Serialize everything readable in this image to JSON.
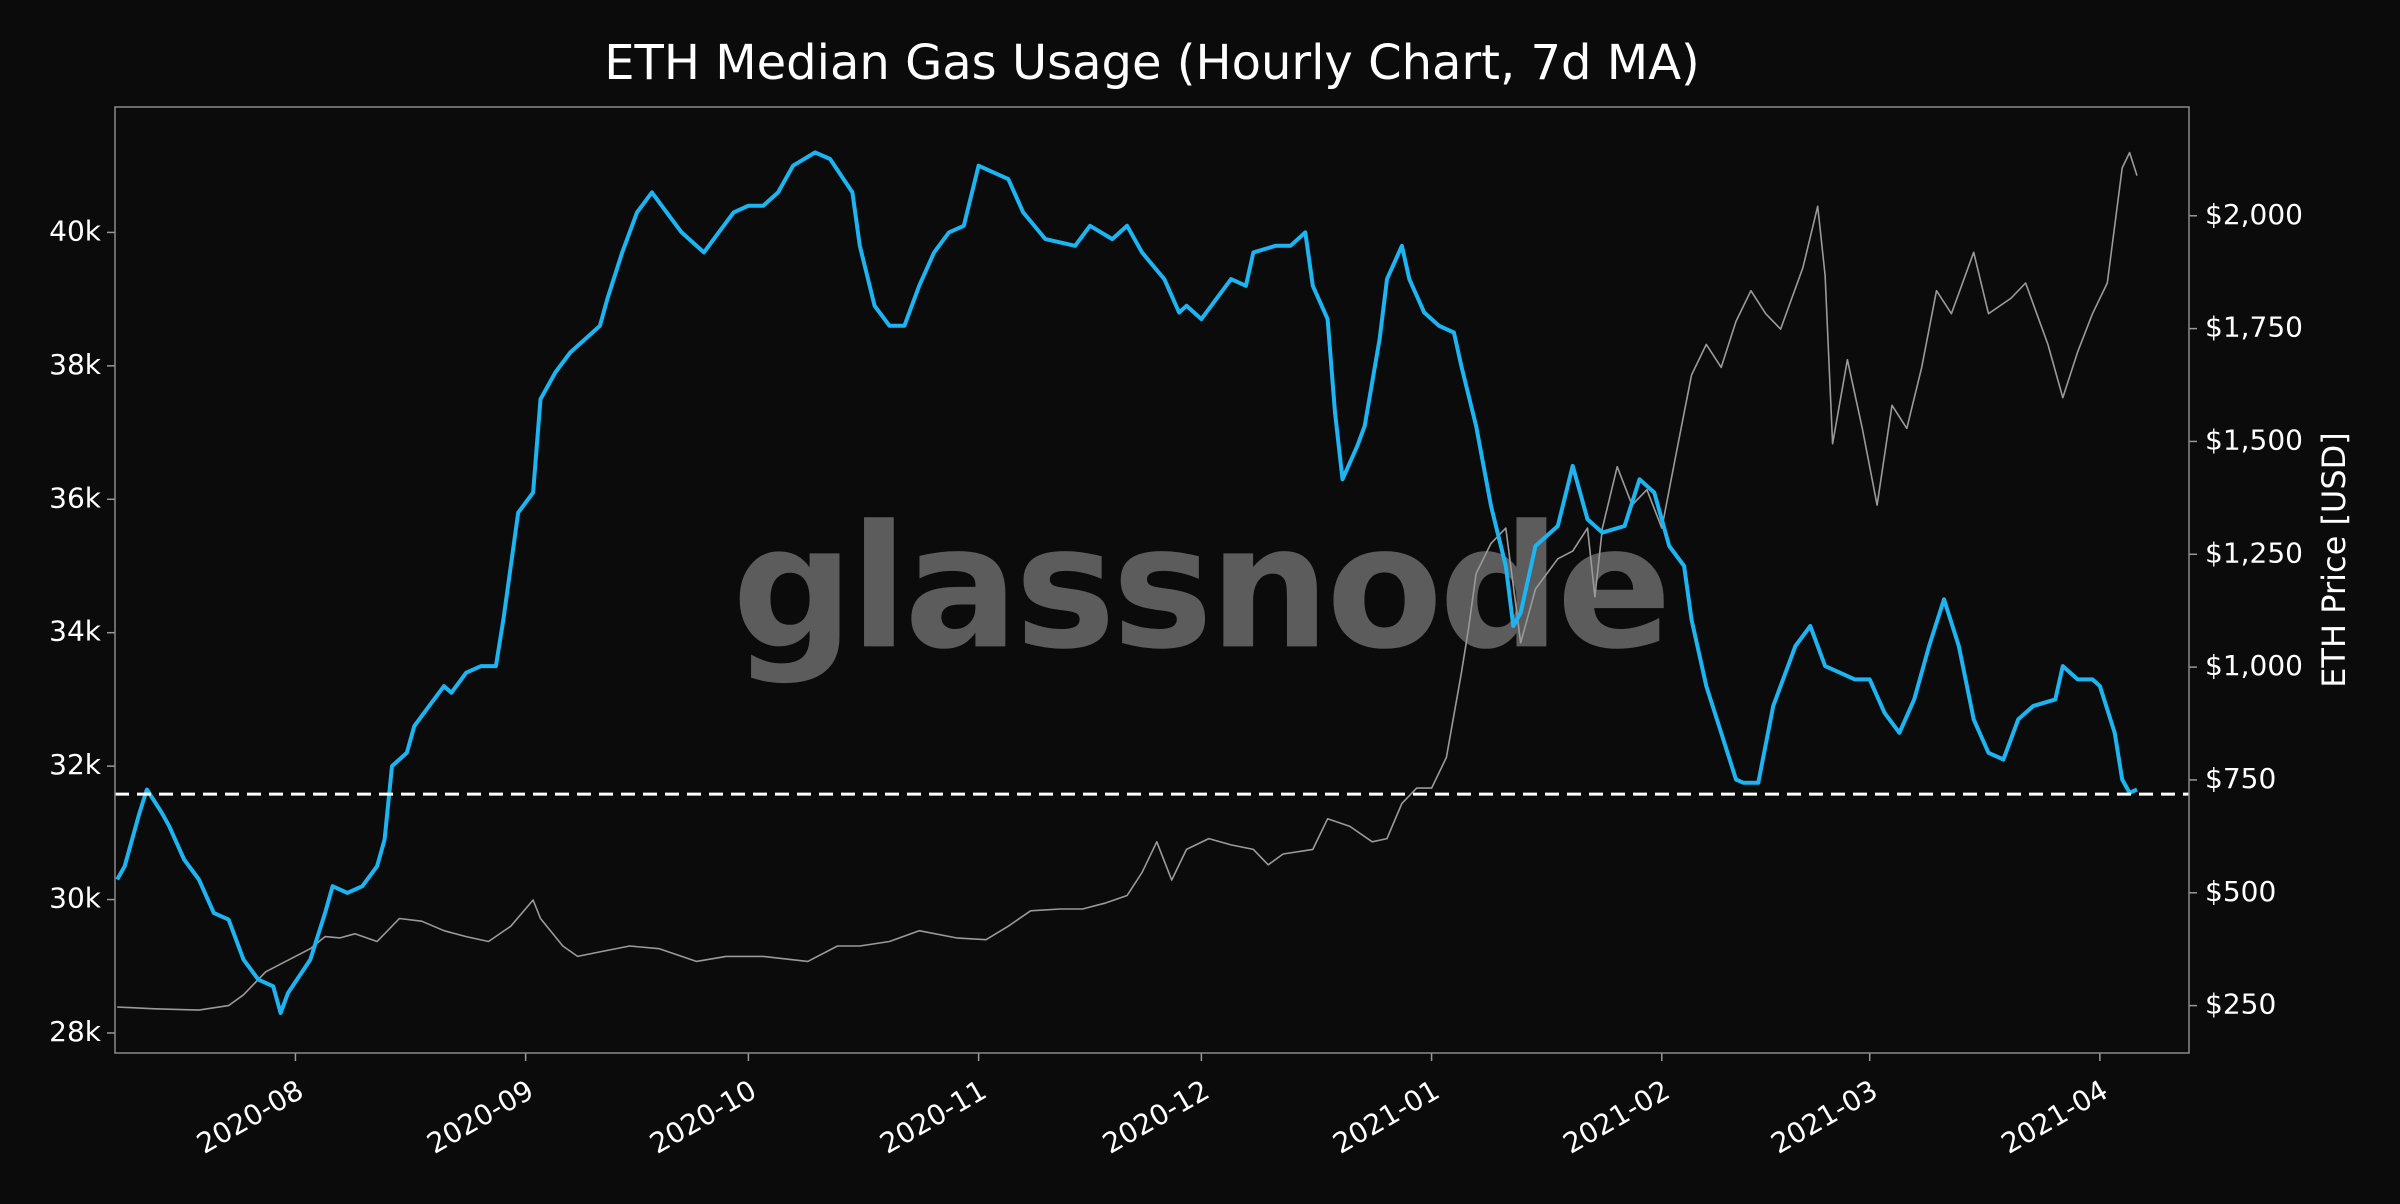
{
  "chart_data": {
    "type": "line",
    "title": "ETH Median Gas Usage (Hourly Chart, 7d MA)",
    "watermark": "glassnode",
    "y2label": "ETH Price [USD]",
    "xlim": [
      6.7,
      286
    ],
    "xticks": [
      {
        "value": 31,
        "label": "2020-08"
      },
      {
        "value": 62,
        "label": "2020-09"
      },
      {
        "value": 92,
        "label": "2020-10"
      },
      {
        "value": 123,
        "label": "2020-11"
      },
      {
        "value": 153,
        "label": "2020-12"
      },
      {
        "value": 184,
        "label": "2021-01"
      },
      {
        "value": 215,
        "label": "2021-02"
      },
      {
        "value": 243,
        "label": "2021-03"
      },
      {
        "value": 274,
        "label": "2021-04"
      }
    ],
    "ylim": [
      27700,
      41880
    ],
    "yticks": [
      {
        "value": 28000,
        "label": "28k"
      },
      {
        "value": 30000,
        "label": "30k"
      },
      {
        "value": 32000,
        "label": "32k"
      },
      {
        "value": 34000,
        "label": "34k"
      },
      {
        "value": 36000,
        "label": "36k"
      },
      {
        "value": 38000,
        "label": "38k"
      },
      {
        "value": 40000,
        "label": "40k"
      }
    ],
    "y2lim": [
      145,
      2241
    ],
    "y2ticks": [
      {
        "value": 250,
        "label": "$250"
      },
      {
        "value": 500,
        "label": "$500"
      },
      {
        "value": 750,
        "label": "$750"
      },
      {
        "value": 1000,
        "label": "$1,000"
      },
      {
        "value": 1250,
        "label": "$1,250"
      },
      {
        "value": 1500,
        "label": "$1,500"
      },
      {
        "value": 1750,
        "label": "$1,750"
      },
      {
        "value": 2000,
        "label": "$2,000"
      }
    ],
    "hline": {
      "value": 31580,
      "color": "#ffffff",
      "dashed": true
    },
    "series": [
      {
        "color": "#9a9a9a",
        "axis": "y2",
        "x": [
          7,
          12,
          18,
          22,
          24,
          27,
          29,
          33,
          35,
          37,
          39,
          42,
          45,
          48,
          51,
          54,
          57,
          60,
          63,
          64,
          67,
          69,
          72,
          76,
          80,
          85,
          89,
          94,
          100,
          104,
          107,
          111,
          115,
          120,
          124,
          127,
          130,
          134,
          137,
          140,
          143,
          145,
          147,
          149,
          151,
          154,
          157,
          160,
          162,
          164,
          168,
          170,
          173,
          176,
          178,
          180,
          182,
          184,
          186,
          188,
          189,
          190,
          192,
          194,
          196,
          198,
          201,
          203,
          205,
          206,
          207,
          209,
          211,
          213,
          215,
          217,
          219,
          221,
          223,
          225,
          227,
          229,
          231,
          234,
          236,
          237,
          238,
          240,
          242,
          244,
          246,
          248,
          250,
          252,
          254,
          257,
          259,
          262,
          264,
          267,
          269,
          271,
          273,
          275,
          277,
          278,
          279
        ],
        "values": [
          247,
          243,
          240,
          250,
          274,
          325,
          342,
          376,
          403,
          400,
          409,
          392,
          443,
          437,
          416,
          403,
          392,
          426,
          484,
          443,
          382,
          359,
          369,
          382,
          376,
          348,
          359,
          359,
          348,
          382,
          382,
          392,
          416,
          400,
          396,
          426,
          460,
          464,
          464,
          477,
          494,
          545,
          613,
          528,
          596,
          620,
          606,
          596,
          562,
          586,
          596,
          664,
          647,
          613,
          620,
          698,
          732,
          732,
          800,
          986,
          1088,
          1207,
          1274,
          1308,
          1054,
          1173,
          1240,
          1257,
          1308,
          1156,
          1308,
          1444,
          1359,
          1393,
          1308,
          1478,
          1647,
          1715,
          1664,
          1766,
          1834,
          1783,
          1749,
          1885,
          2021,
          1868,
          1495,
          1681,
          1529,
          1359,
          1580,
          1529,
          1664,
          1834,
          1783,
          1919,
          1783,
          1817,
          1851,
          1715,
          1597,
          1698,
          1783,
          1851,
          2106,
          2140,
          2089
        ]
      },
      {
        "color": "#1db4f2",
        "x": [
          7,
          8,
          10,
          11,
          13,
          14,
          16,
          18,
          20,
          22,
          24,
          26,
          28,
          29,
          30,
          33,
          35,
          36,
          38,
          40,
          42,
          43,
          44,
          46,
          47,
          49,
          51,
          52,
          54,
          56,
          58,
          59,
          61,
          63,
          64,
          66,
          68,
          70,
          72,
          73,
          75,
          77,
          79,
          81,
          83,
          86,
          88,
          90,
          92,
          94,
          96,
          98,
          101,
          103,
          106,
          107,
          109,
          111,
          113,
          115,
          117,
          119,
          121,
          123,
          125,
          127,
          129,
          132,
          136,
          138,
          141,
          143,
          145,
          148,
          150,
          151,
          153,
          155,
          157,
          159,
          160,
          163,
          165,
          167,
          168,
          170,
          171,
          172,
          174,
          175,
          177,
          178,
          180,
          181,
          183,
          185,
          187,
          188,
          190,
          192,
          194,
          195,
          196,
          198,
          201,
          203,
          205,
          207,
          210,
          212,
          214,
          216,
          218,
          219,
          221,
          223,
          225,
          226,
          228,
          230,
          233,
          235,
          237,
          239,
          241,
          243,
          245,
          247,
          249,
          251,
          253,
          255,
          257,
          259,
          261,
          263,
          265,
          268,
          269,
          271,
          273,
          274,
          276,
          277,
          278,
          279
        ],
        "values": [
          30300,
          30500,
          31300,
          31650,
          31300,
          31100,
          30600,
          30300,
          29800,
          29700,
          29100,
          28800,
          28700,
          28300,
          28600,
          29100,
          29800,
          30200,
          30100,
          30200,
          30500,
          30900,
          32000,
          32200,
          32600,
          32900,
          33200,
          33100,
          33400,
          33500,
          33500,
          34200,
          35800,
          36100,
          37500,
          37900,
          38200,
          38400,
          38600,
          39000,
          39700,
          40300,
          40600,
          40300,
          40000,
          39700,
          40000,
          40300,
          40400,
          40400,
          40600,
          41000,
          41200,
          41100,
          40600,
          39800,
          38900,
          38600,
          38600,
          39200,
          39700,
          40000,
          40100,
          41000,
          40900,
          40800,
          40300,
          39900,
          39800,
          40100,
          39900,
          40100,
          39700,
          39300,
          38800,
          38900,
          38700,
          39000,
          39300,
          39200,
          39700,
          39800,
          39800,
          40000,
          39200,
          38700,
          37300,
          36300,
          36800,
          37100,
          38400,
          39300,
          39800,
          39300,
          38800,
          38600,
          38500,
          38000,
          37100,
          35900,
          35000,
          34100,
          34300,
          35300,
          35600,
          36500,
          35700,
          35500,
          35600,
          36300,
          36100,
          35300,
          35000,
          34200,
          33200,
          32500,
          31800,
          31750,
          31750,
          32900,
          33800,
          34100,
          33500,
          33400,
          33300,
          33300,
          32800,
          32500,
          33000,
          33800,
          34500,
          33800,
          32700,
          32200,
          32100,
          32700,
          32900,
          33000,
          33500,
          33300,
          33300,
          33200,
          32500,
          31800,
          31600,
          31650
        ]
      }
    ]
  }
}
